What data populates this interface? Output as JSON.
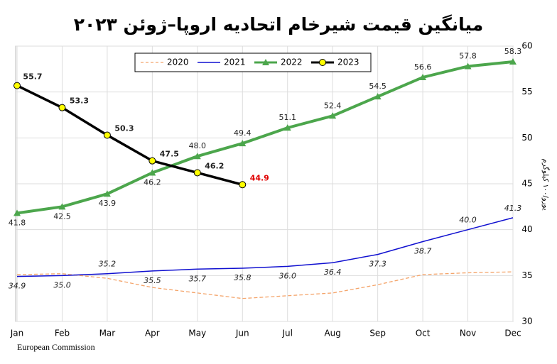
{
  "chart_data": {
    "type": "line",
    "title": "میانگین قیمت شیرخام اتحادیه اروپا–ژوئن ۲۰۲۳",
    "y_axis_label": "یورو/۱۰۰ کیلوگرم",
    "source": "European Commission",
    "categories": [
      "Jan",
      "Feb",
      "Mar",
      "Apr",
      "May",
      "Jun",
      "Jul",
      "Aug",
      "Sep",
      "Oct",
      "Nov",
      "Dec"
    ],
    "ylim": [
      30,
      60
    ],
    "yticks": [
      30,
      35,
      40,
      45,
      50,
      55,
      60
    ],
    "grid": true,
    "y_axis_side": "right",
    "legend": "top",
    "series": [
      {
        "name": "2020",
        "color": "#f4a46a",
        "dashed": true,
        "values": [
          35.1,
          35.2,
          34.7,
          33.7,
          33.1,
          32.5,
          32.8,
          33.1,
          34.0,
          35.1,
          35.3,
          35.4
        ]
      },
      {
        "name": "2021",
        "color": "#1010d0",
        "values": [
          34.9,
          35.0,
          35.2,
          35.5,
          35.7,
          35.8,
          36.0,
          36.4,
          37.3,
          38.7,
          40.0,
          41.3
        ],
        "value_labels": [
          "34.9",
          "35.0",
          "35.2",
          "35.5",
          "35.7",
          "35.8",
          "36.0",
          "36.4",
          "37.3",
          "38.7",
          "40.0",
          "41.3"
        ]
      },
      {
        "name": "2022",
        "color": "#4ca64c",
        "marker": "triangle",
        "values": [
          41.8,
          42.5,
          43.9,
          46.2,
          48.0,
          49.4,
          51.1,
          52.4,
          54.5,
          56.6,
          57.8,
          58.3
        ],
        "value_labels": [
          "41.8",
          "42.5",
          "43.9",
          "46.2",
          "48.0",
          "49.4",
          "51.1",
          "52.4",
          "54.5",
          "56.6",
          "57.8",
          "58.3"
        ]
      },
      {
        "name": "2023",
        "color": "#000000",
        "marker": "circle",
        "marker_color": "#ffff00",
        "values": [
          55.7,
          53.3,
          50.3,
          47.5,
          46.2,
          44.9,
          null,
          null,
          null,
          null,
          null,
          null
        ],
        "value_labels": [
          "55.7",
          "53.3",
          "50.3",
          "47.5",
          "46.2",
          "44.9",
          null,
          null,
          null,
          null,
          null,
          null
        ]
      }
    ]
  }
}
